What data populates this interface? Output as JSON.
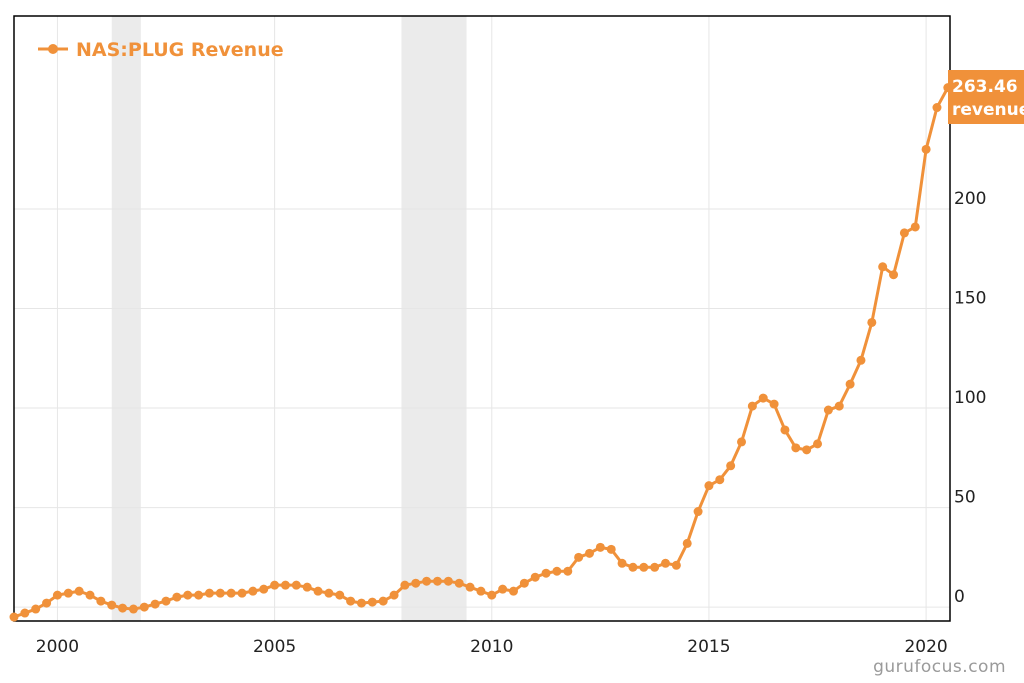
{
  "chart_data": {
    "type": "line",
    "legend": {
      "label": "NAS:PLUG Revenue",
      "position": "top-left"
    },
    "colors": {
      "series": "#f0913a",
      "grid": "#e6e6e6",
      "recession": "#ebebeb",
      "border": "#000000"
    },
    "xlim": [
      1999.0,
      2020.55
    ],
    "ylim": [
      -7,
      297
    ],
    "grid": true,
    "x_ticks": [
      "2000",
      "2005",
      "2010",
      "2015",
      "2020"
    ],
    "y_ticks": [
      "0",
      "50",
      "100",
      "150",
      "200"
    ],
    "recessions": [
      [
        2001.25,
        2001.92
      ],
      [
        2007.92,
        2009.42
      ]
    ],
    "last_value": {
      "value": "263.46",
      "label": "revenue"
    },
    "series": [
      {
        "points": [
          [
            1999.0,
            -5
          ],
          [
            1999.25,
            -3
          ],
          [
            1999.5,
            -1
          ],
          [
            1999.75,
            2
          ],
          [
            2000.0,
            6
          ],
          [
            2000.25,
            7
          ],
          [
            2000.5,
            8
          ],
          [
            2000.75,
            6
          ],
          [
            2001.0,
            3
          ],
          [
            2001.25,
            1
          ],
          [
            2001.5,
            -0.5
          ],
          [
            2001.75,
            -1
          ],
          [
            2002.0,
            0
          ],
          [
            2002.25,
            1.5
          ],
          [
            2002.5,
            3
          ],
          [
            2002.75,
            5
          ],
          [
            2003.0,
            6
          ],
          [
            2003.25,
            6
          ],
          [
            2003.5,
            7
          ],
          [
            2003.75,
            7
          ],
          [
            2004.0,
            7
          ],
          [
            2004.25,
            7
          ],
          [
            2004.5,
            8
          ],
          [
            2004.75,
            9
          ],
          [
            2005.0,
            11
          ],
          [
            2005.25,
            11
          ],
          [
            2005.5,
            11
          ],
          [
            2005.75,
            10
          ],
          [
            2006.0,
            8
          ],
          [
            2006.25,
            7
          ],
          [
            2006.5,
            6
          ],
          [
            2006.75,
            3
          ],
          [
            2007.0,
            2
          ],
          [
            2007.25,
            2.5
          ],
          [
            2007.5,
            3
          ],
          [
            2007.75,
            6
          ],
          [
            2008.0,
            11
          ],
          [
            2008.25,
            12
          ],
          [
            2008.5,
            13
          ],
          [
            2008.75,
            13
          ],
          [
            2009.0,
            13
          ],
          [
            2009.25,
            12
          ],
          [
            2009.5,
            10
          ],
          [
            2009.75,
            8
          ],
          [
            2010.0,
            6
          ],
          [
            2010.25,
            9
          ],
          [
            2010.5,
            8
          ],
          [
            2010.75,
            12
          ],
          [
            2011.0,
            15
          ],
          [
            2011.25,
            17
          ],
          [
            2011.5,
            18
          ],
          [
            2011.75,
            18
          ],
          [
            2012.0,
            25
          ],
          [
            2012.25,
            27
          ],
          [
            2012.5,
            30
          ],
          [
            2012.75,
            29
          ],
          [
            2013.0,
            22
          ],
          [
            2013.25,
            20
          ],
          [
            2013.5,
            20
          ],
          [
            2013.75,
            20
          ],
          [
            2014.0,
            22
          ],
          [
            2014.25,
            21
          ],
          [
            2014.5,
            32
          ],
          [
            2014.75,
            48
          ],
          [
            2015.0,
            61
          ],
          [
            2015.25,
            64
          ],
          [
            2015.5,
            71
          ],
          [
            2015.75,
            83
          ],
          [
            2016.0,
            101
          ],
          [
            2016.25,
            105
          ],
          [
            2016.5,
            102
          ],
          [
            2016.75,
            89
          ],
          [
            2017.0,
            80
          ],
          [
            2017.25,
            79
          ],
          [
            2017.5,
            82
          ],
          [
            2017.75,
            99
          ],
          [
            2018.0,
            101
          ],
          [
            2018.25,
            112
          ],
          [
            2018.5,
            124
          ],
          [
            2018.75,
            143
          ],
          [
            2019.0,
            171
          ],
          [
            2019.25,
            167
          ],
          [
            2019.5,
            188
          ],
          [
            2019.75,
            191
          ],
          [
            2020.0,
            230
          ],
          [
            2020.25,
            251
          ],
          [
            2020.5,
            261
          ]
        ]
      }
    ]
  },
  "watermark": "gurufocus.com"
}
